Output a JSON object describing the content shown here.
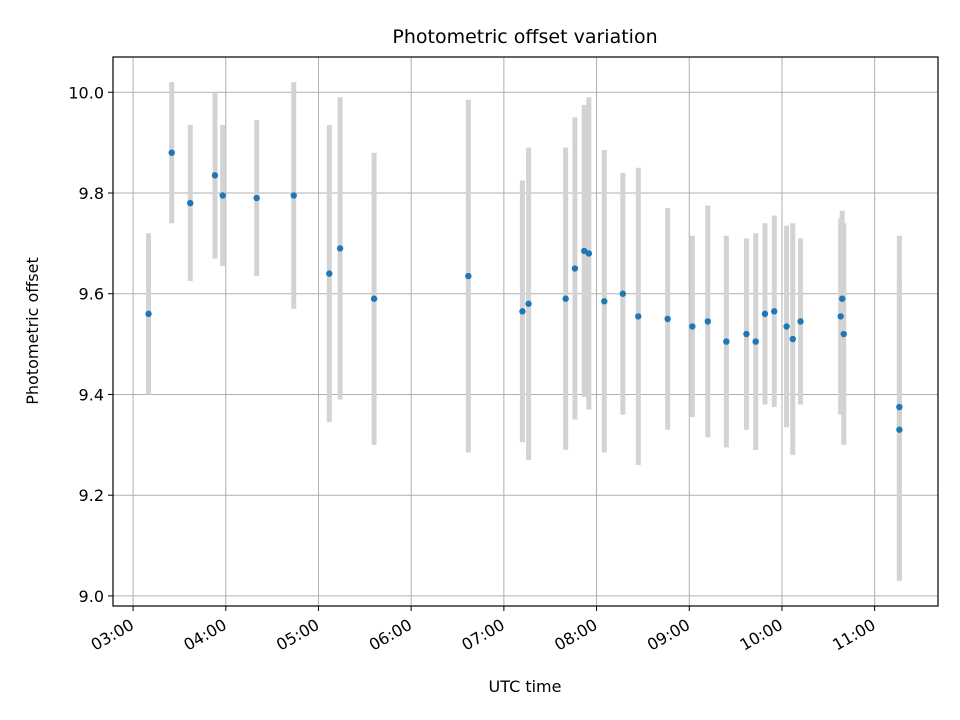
{
  "chart_data": {
    "type": "scatter",
    "title": "Photometric offset variation",
    "xlabel": "UTC time",
    "ylabel": "Photometric offset",
    "x_ticks": [
      "03:00",
      "04:00",
      "05:00",
      "06:00",
      "07:00",
      "08:00",
      "09:00",
      "10:00",
      "11:00"
    ],
    "y_ticks": [
      "9.0",
      "9.2",
      "9.4",
      "9.6",
      "9.8",
      "10.0"
    ],
    "xlim": [
      "02:47",
      "11:41"
    ],
    "ylim": [
      8.98,
      10.07
    ],
    "grid": true,
    "marker_color": "#1f77b4",
    "errorbar_color": "#d3d3d3",
    "series": [
      {
        "points": [
          {
            "x": "03:10",
            "y": 9.56,
            "err": 0.16
          },
          {
            "x": "03:25",
            "y": 9.88,
            "err": 0.14
          },
          {
            "x": "03:37",
            "y": 9.78,
            "err": 0.155
          },
          {
            "x": "03:53",
            "y": 9.835,
            "err": 0.165
          },
          {
            "x": "03:58",
            "y": 9.795,
            "err": 0.14
          },
          {
            "x": "04:20",
            "y": 9.79,
            "err": 0.155
          },
          {
            "x": "04:44",
            "y": 9.795,
            "err": 0.225
          },
          {
            "x": "05:07",
            "y": 9.64,
            "err": 0.295
          },
          {
            "x": "05:14",
            "y": 9.69,
            "err": 0.3
          },
          {
            "x": "05:36",
            "y": 9.59,
            "err": 0.29
          },
          {
            "x": "06:37",
            "y": 9.635,
            "err": 0.35
          },
          {
            "x": "07:12",
            "y": 9.565,
            "err": 0.26
          },
          {
            "x": "07:16",
            "y": 9.58,
            "err": 0.31
          },
          {
            "x": "07:40",
            "y": 9.59,
            "err": 0.3
          },
          {
            "x": "07:46",
            "y": 9.65,
            "err": 0.3
          },
          {
            "x": "07:52",
            "y": 9.685,
            "err": 0.29
          },
          {
            "x": "07:55",
            "y": 9.68,
            "err": 0.31
          },
          {
            "x": "08:05",
            "y": 9.585,
            "err": 0.3
          },
          {
            "x": "08:17",
            "y": 9.6,
            "err": 0.24
          },
          {
            "x": "08:27",
            "y": 9.555,
            "err": 0.295
          },
          {
            "x": "08:46",
            "y": 9.55,
            "err": 0.22
          },
          {
            "x": "09:02",
            "y": 9.535,
            "err": 0.18
          },
          {
            "x": "09:12",
            "y": 9.545,
            "err": 0.23
          },
          {
            "x": "09:24",
            "y": 9.505,
            "err": 0.21
          },
          {
            "x": "09:37",
            "y": 9.52,
            "err": 0.19
          },
          {
            "x": "09:43",
            "y": 9.505,
            "err": 0.215
          },
          {
            "x": "09:49",
            "y": 9.56,
            "err": 0.18
          },
          {
            "x": "09:55",
            "y": 9.565,
            "err": 0.19
          },
          {
            "x": "10:03",
            "y": 9.535,
            "err": 0.2
          },
          {
            "x": "10:07",
            "y": 9.51,
            "err": 0.23
          },
          {
            "x": "10:12",
            "y": 9.545,
            "err": 0.165
          },
          {
            "x": "10:38",
            "y": 9.555,
            "err": 0.195
          },
          {
            "x": "10:39",
            "y": 9.59,
            "err": 0.175
          },
          {
            "x": "10:40",
            "y": 9.52,
            "err": 0.22
          },
          {
            "x": "11:16",
            "y": 9.375,
            "err": 0.34
          },
          {
            "x": "11:16",
            "y": 9.33,
            "err": 0.3
          }
        ]
      }
    ]
  }
}
